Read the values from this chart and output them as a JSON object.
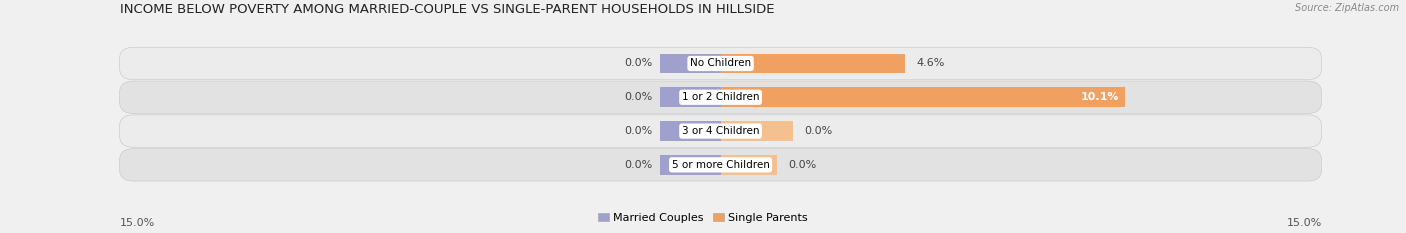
{
  "title": "INCOME BELOW POVERTY AMONG MARRIED-COUPLE VS SINGLE-PARENT HOUSEHOLDS IN HILLSIDE",
  "source": "Source: ZipAtlas.com",
  "categories": [
    "No Children",
    "1 or 2 Children",
    "3 or 4 Children",
    "5 or more Children"
  ],
  "married_values": [
    0.0,
    0.0,
    0.0,
    0.0
  ],
  "single_values": [
    4.6,
    10.1,
    0.0,
    0.0
  ],
  "married_stub": 1.5,
  "single_stub_34": 1.8,
  "single_stub_5p": 1.4,
  "xlim": 15.0,
  "married_color": "#a0a0cc",
  "single_color": "#f0a060",
  "single_color_light": "#f5c090",
  "row_colors": [
    "#ececec",
    "#e2e2e2",
    "#ececec",
    "#e2e2e2"
  ],
  "bar_height": 0.58,
  "title_fontsize": 9.5,
  "val_fontsize": 8,
  "cat_fontsize": 7.5,
  "axis_fontsize": 8,
  "legend_fontsize": 8
}
